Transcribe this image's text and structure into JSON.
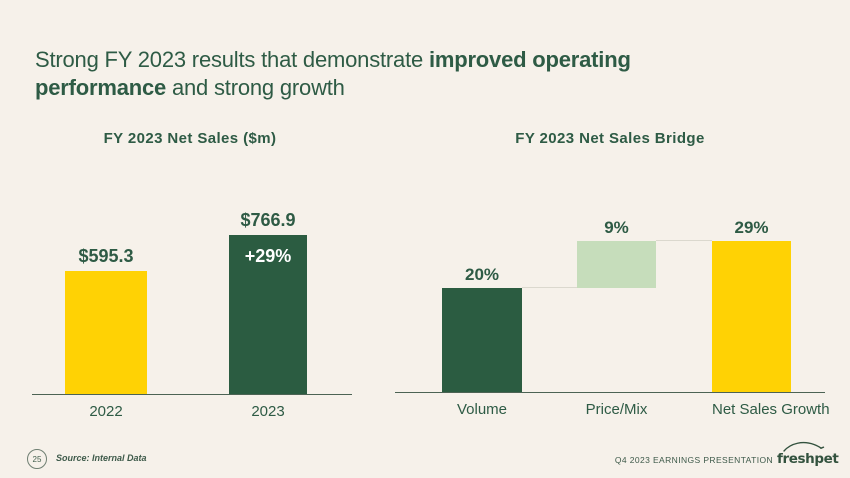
{
  "slide": {
    "title": {
      "line1_regular": "Strong FY 2023 results that demonstrate ",
      "line1_bold": "improved operating",
      "line2_bold": "performance",
      "line2_regular": " and strong growth"
    }
  },
  "colors": {
    "background": "#F6F1EA",
    "title_green": "#2E5B45",
    "dark_green_bar": "#2B5C41",
    "yellow_bar": "#FFD204",
    "light_green_bar": "#C6DDBB",
    "axis_line": "#4C6354",
    "connector_line": "#DBD8CE",
    "inside_label_white": "#FFFFFF",
    "footer_text": "#3E5A4A"
  },
  "chart_data": [
    {
      "type": "bar",
      "title": "FY 2023 Net Sales ($m)",
      "categories": [
        "2022",
        "2023"
      ],
      "values": [
        595.3,
        766.9
      ],
      "ylabel": "",
      "ylim": [
        0,
        800
      ],
      "grid": false,
      "bars": [
        {
          "category": "2022",
          "value": 595.3,
          "base": 0,
          "label": "$595.3",
          "color": "#FFD204"
        },
        {
          "category": "2023",
          "value": 766.9,
          "base": 0,
          "label": "$766.9",
          "inside_label": "+29%",
          "color": "#2B5C41"
        }
      ]
    },
    {
      "type": "waterfall",
      "title": "FY 2023 Net Sales Bridge",
      "categories": [
        "Volume",
        "Price/Mix",
        "Net Sales Growth"
      ],
      "values": [
        20,
        9,
        29
      ],
      "ylabel": "",
      "ylim": [
        0,
        32
      ],
      "grid": false,
      "bars": [
        {
          "category": "Volume",
          "value": 20,
          "base": 0,
          "label": "20%",
          "color": "#2B5C41"
        },
        {
          "category": "Price/Mix",
          "value": 9,
          "base": 20,
          "label": "9%",
          "color": "#C6DDBB"
        },
        {
          "category": "Net Sales Growth",
          "value": 29,
          "base": 0,
          "label": "29%",
          "color": "#FFD204"
        }
      ]
    }
  ],
  "footer": {
    "page_number": "25",
    "source": "Source: Internal Data",
    "presentation_label": "Q4 2023 EARNINGS PRESENTATION",
    "logo_text": "freshpet"
  }
}
